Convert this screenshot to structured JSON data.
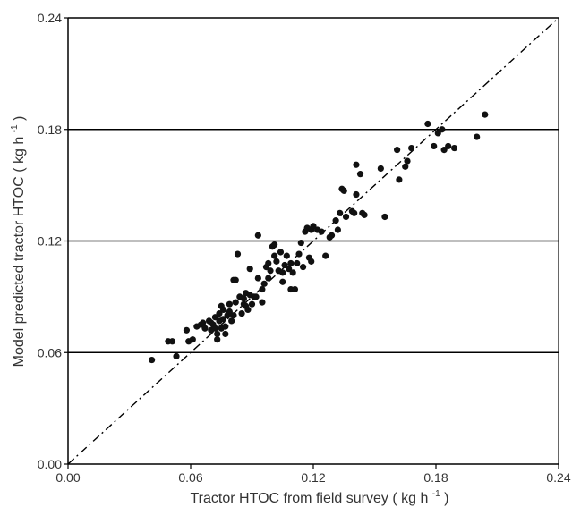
{
  "chart_data": {
    "type": "scatter",
    "xlabel": "Tractor HTOC  from field survey",
    "xlabel_unit_open": "( kg h",
    "xlabel_unit_sup": "-1",
    "xlabel_unit_close": ")",
    "ylabel": "Model predicted tractor HTOC",
    "ylabel_unit_open": "( kg h",
    "ylabel_unit_sup": "-1",
    "ylabel_unit_close": ")",
    "xlim": [
      0,
      0.24
    ],
    "ylim": [
      0,
      0.24
    ],
    "xticks": [
      "0.00",
      "0.06",
      "0.12",
      "0.18",
      "0.24"
    ],
    "yticks": [
      "0.00",
      "0.06",
      "0.12",
      "0.18",
      "0.24"
    ],
    "gridlines_y": [
      0.06,
      0.12,
      0.18,
      0.24
    ],
    "reference_line": {
      "style": "dash-dot",
      "from": [
        0,
        0
      ],
      "to": [
        0.24,
        0.24
      ]
    },
    "marker_color": "#111111",
    "line_color": "#000000",
    "points": [
      [
        0.041,
        0.056
      ],
      [
        0.049,
        0.066
      ],
      [
        0.051,
        0.066
      ],
      [
        0.053,
        0.058
      ],
      [
        0.058,
        0.072
      ],
      [
        0.059,
        0.066
      ],
      [
        0.061,
        0.067
      ],
      [
        0.063,
        0.074
      ],
      [
        0.065,
        0.075
      ],
      [
        0.066,
        0.076
      ],
      [
        0.067,
        0.073
      ],
      [
        0.069,
        0.077
      ],
      [
        0.07,
        0.076
      ],
      [
        0.07,
        0.072
      ],
      [
        0.071,
        0.075
      ],
      [
        0.072,
        0.079
      ],
      [
        0.072,
        0.073
      ],
      [
        0.073,
        0.07
      ],
      [
        0.073,
        0.067
      ],
      [
        0.074,
        0.081
      ],
      [
        0.074,
        0.077
      ],
      [
        0.075,
        0.085
      ],
      [
        0.075,
        0.073
      ],
      [
        0.076,
        0.083
      ],
      [
        0.076,
        0.078
      ],
      [
        0.077,
        0.07
      ],
      [
        0.077,
        0.074
      ],
      [
        0.078,
        0.08
      ],
      [
        0.079,
        0.086
      ],
      [
        0.079,
        0.082
      ],
      [
        0.08,
        0.077
      ],
      [
        0.081,
        0.08
      ],
      [
        0.081,
        0.099
      ],
      [
        0.082,
        0.087
      ],
      [
        0.082,
        0.099
      ],
      [
        0.083,
        0.113
      ],
      [
        0.084,
        0.09
      ],
      [
        0.085,
        0.081
      ],
      [
        0.086,
        0.086
      ],
      [
        0.086,
        0.089
      ],
      [
        0.087,
        0.085
      ],
      [
        0.087,
        0.092
      ],
      [
        0.088,
        0.083
      ],
      [
        0.089,
        0.091
      ],
      [
        0.089,
        0.105
      ],
      [
        0.09,
        0.086
      ],
      [
        0.091,
        0.09
      ],
      [
        0.092,
        0.09
      ],
      [
        0.093,
        0.1
      ],
      [
        0.093,
        0.123
      ],
      [
        0.095,
        0.087
      ],
      [
        0.095,
        0.094
      ],
      [
        0.096,
        0.097
      ],
      [
        0.097,
        0.106
      ],
      [
        0.098,
        0.108
      ],
      [
        0.098,
        0.1
      ],
      [
        0.099,
        0.104
      ],
      [
        0.1,
        0.117
      ],
      [
        0.101,
        0.112
      ],
      [
        0.101,
        0.118
      ],
      [
        0.102,
        0.109
      ],
      [
        0.103,
        0.104
      ],
      [
        0.104,
        0.114
      ],
      [
        0.105,
        0.103
      ],
      [
        0.105,
        0.098
      ],
      [
        0.106,
        0.107
      ],
      [
        0.107,
        0.112
      ],
      [
        0.108,
        0.105
      ],
      [
        0.109,
        0.108
      ],
      [
        0.109,
        0.094
      ],
      [
        0.11,
        0.103
      ],
      [
        0.111,
        0.094
      ],
      [
        0.112,
        0.108
      ],
      [
        0.113,
        0.113
      ],
      [
        0.114,
        0.119
      ],
      [
        0.115,
        0.106
      ],
      [
        0.116,
        0.125
      ],
      [
        0.117,
        0.127
      ],
      [
        0.118,
        0.111
      ],
      [
        0.119,
        0.109
      ],
      [
        0.119,
        0.126
      ],
      [
        0.12,
        0.128
      ],
      [
        0.122,
        0.126
      ],
      [
        0.124,
        0.125
      ],
      [
        0.126,
        0.112
      ],
      [
        0.128,
        0.122
      ],
      [
        0.129,
        0.123
      ],
      [
        0.131,
        0.131
      ],
      [
        0.132,
        0.126
      ],
      [
        0.133,
        0.135
      ],
      [
        0.134,
        0.148
      ],
      [
        0.135,
        0.147
      ],
      [
        0.136,
        0.133
      ],
      [
        0.139,
        0.136
      ],
      [
        0.14,
        0.135
      ],
      [
        0.141,
        0.161
      ],
      [
        0.141,
        0.145
      ],
      [
        0.143,
        0.156
      ],
      [
        0.144,
        0.135
      ],
      [
        0.145,
        0.134
      ],
      [
        0.153,
        0.159
      ],
      [
        0.155,
        0.133
      ],
      [
        0.161,
        0.169
      ],
      [
        0.162,
        0.153
      ],
      [
        0.165,
        0.16
      ],
      [
        0.166,
        0.163
      ],
      [
        0.168,
        0.17
      ],
      [
        0.176,
        0.183
      ],
      [
        0.179,
        0.171
      ],
      [
        0.181,
        0.178
      ],
      [
        0.183,
        0.18
      ],
      [
        0.184,
        0.169
      ],
      [
        0.186,
        0.171
      ],
      [
        0.189,
        0.17
      ],
      [
        0.2,
        0.176
      ],
      [
        0.204,
        0.188
      ]
    ]
  }
}
